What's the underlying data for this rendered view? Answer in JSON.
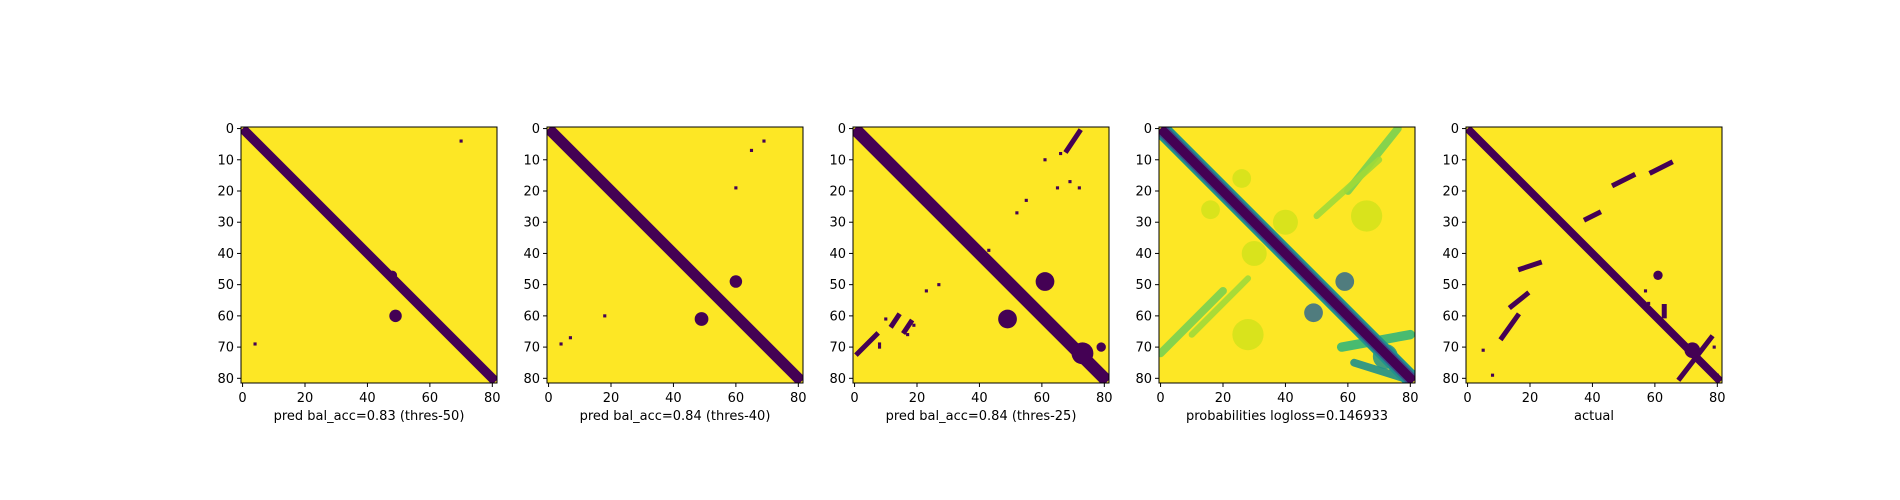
{
  "chart_data": [
    {
      "type": "heatmap",
      "title": "",
      "xlabel": "pred bal_acc=0.83 (thres-50)",
      "ylabel": "",
      "size": 82,
      "xlim": [
        0,
        81
      ],
      "ylim": [
        81,
        0
      ],
      "xticks": [
        0,
        20,
        40,
        60,
        80
      ],
      "yticks": [
        0,
        10,
        20,
        30,
        40,
        50,
        60,
        70,
        80
      ],
      "grid": false,
      "colormap": "viridis",
      "background_color": "#fde725",
      "mark_color": "#440154",
      "values_description": "binary contact map",
      "diagonal_band": {
        "from": 0,
        "to": 81,
        "width": 3
      },
      "blobs": [
        [
          49,
          60,
          2
        ],
        [
          48,
          47,
          1.5
        ]
      ],
      "dots": [
        [
          70,
          4
        ],
        [
          4,
          69
        ]
      ],
      "lines": []
    },
    {
      "type": "heatmap",
      "title": "",
      "xlabel": "pred bal_acc=0.84 (thres-40)",
      "ylabel": "",
      "size": 82,
      "xlim": [
        0,
        81
      ],
      "ylim": [
        81,
        0
      ],
      "xticks": [
        0,
        20,
        40,
        60,
        80
      ],
      "yticks": [
        0,
        10,
        20,
        30,
        40,
        50,
        60,
        70,
        80
      ],
      "grid": false,
      "colormap": "viridis",
      "background_color": "#fde725",
      "mark_color": "#440154",
      "diagonal_band": {
        "from": 0,
        "to": 81,
        "width": 3.5
      },
      "blobs": [
        [
          49,
          61,
          2.2
        ],
        [
          60,
          49,
          2
        ]
      ],
      "dots": [
        [
          69,
          4
        ],
        [
          65,
          7
        ],
        [
          60,
          19
        ],
        [
          7,
          67
        ],
        [
          18,
          60
        ],
        [
          4,
          69
        ]
      ],
      "lines": []
    },
    {
      "type": "heatmap",
      "title": "",
      "xlabel": "pred bal_acc=0.84 (thres-25)",
      "ylabel": "",
      "size": 82,
      "xlim": [
        0,
        81
      ],
      "ylim": [
        81,
        0
      ],
      "xticks": [
        0,
        20,
        40,
        60,
        80
      ],
      "yticks": [
        0,
        10,
        20,
        30,
        40,
        50,
        60,
        70,
        80
      ],
      "grid": false,
      "colormap": "viridis",
      "background_color": "#fde725",
      "mark_color": "#440154",
      "diagonal_band": {
        "from": 0,
        "to": 81,
        "width": 4
      },
      "blobs": [
        [
          49,
          61,
          3
        ],
        [
          61,
          49,
          3
        ],
        [
          73,
          72,
          3.5
        ],
        [
          79,
          70,
          1.5
        ]
      ],
      "dots": [
        [
          65,
          19
        ],
        [
          69,
          17
        ],
        [
          72,
          19
        ],
        [
          55,
          23
        ],
        [
          52,
          27
        ],
        [
          38,
          39
        ],
        [
          43,
          39
        ],
        [
          61,
          10
        ],
        [
          66,
          8
        ],
        [
          8,
          69
        ],
        [
          19,
          63
        ],
        [
          17,
          66
        ],
        [
          23,
          52
        ],
        [
          27,
          50
        ],
        [
          39,
          39
        ],
        [
          10,
          61
        ],
        [
          8,
          70
        ]
      ],
      "lines": [
        [
          [
            72,
            1
          ],
          [
            68,
            7
          ]
        ],
        [
          [
            1,
            72
          ],
          [
            7,
            66
          ]
        ],
        [
          [
            12,
            63
          ],
          [
            14,
            60
          ]
        ],
        [
          [
            16,
            65
          ],
          [
            18,
            62
          ]
        ]
      ]
    },
    {
      "type": "heatmap",
      "title": "",
      "xlabel": "probabilities logloss=0.146933",
      "ylabel": "",
      "size": 82,
      "xlim": [
        0,
        81
      ],
      "ylim": [
        81,
        0
      ],
      "xticks": [
        0,
        20,
        40,
        60,
        80
      ],
      "yticks": [
        0,
        10,
        20,
        30,
        40,
        50,
        60,
        70,
        80
      ],
      "grid": false,
      "colormap": "viridis",
      "background_color": "#fde725",
      "values_description": "continuous probability map",
      "diagonal_band": {
        "from": 0,
        "to": 81,
        "width": 3
      },
      "soft_bands": [
        {
          "from": [
            60,
            20
          ],
          "to": [
            76,
            0
          ],
          "width": 2.5,
          "color": "#7ad151"
        },
        {
          "from": [
            50,
            28
          ],
          "to": [
            70,
            10
          ],
          "width": 2,
          "color": "#a0da39"
        },
        {
          "from": [
            0,
            72
          ],
          "to": [
            20,
            52
          ],
          "width": 2.5,
          "color": "#7ad151"
        },
        {
          "from": [
            10,
            66
          ],
          "to": [
            28,
            48
          ],
          "width": 2,
          "color": "#a0da39"
        },
        {
          "from": [
            58,
            70
          ],
          "to": [
            80,
            66
          ],
          "width": 3,
          "color": "#35b779"
        },
        {
          "from": [
            62,
            75
          ],
          "to": [
            78,
            80
          ],
          "width": 2.5,
          "color": "#21918c"
        }
      ],
      "soft_blobs": [
        [
          49,
          59,
          3,
          "#31688e"
        ],
        [
          59,
          49,
          3,
          "#31688e"
        ],
        [
          72,
          73,
          4,
          "#21918c"
        ],
        [
          66,
          28,
          5,
          "#d2e21b"
        ],
        [
          28,
          66,
          5,
          "#d2e21b"
        ],
        [
          40,
          30,
          4,
          "#d2e21b"
        ],
        [
          30,
          40,
          4,
          "#d2e21b"
        ],
        [
          16,
          26,
          3,
          "#d2e21b"
        ],
        [
          26,
          16,
          3,
          "#d2e21b"
        ]
      ]
    },
    {
      "type": "heatmap",
      "title": "",
      "xlabel": "actual",
      "ylabel": "",
      "size": 82,
      "xlim": [
        0,
        81
      ],
      "ylim": [
        81,
        0
      ],
      "xticks": [
        0,
        20,
        40,
        60,
        80
      ],
      "yticks": [
        0,
        10,
        20,
        30,
        40,
        50,
        60,
        70,
        80
      ],
      "grid": false,
      "colormap": "viridis",
      "background_color": "#fde725",
      "mark_color": "#440154",
      "diagonal_band": {
        "from": 0,
        "to": 81,
        "width": 2.5
      },
      "blobs": [
        [
          61,
          47,
          1.5
        ],
        [
          72,
          71,
          2.5
        ]
      ],
      "dots": [
        [
          57,
          52
        ],
        [
          58,
          56
        ],
        [
          79,
          70
        ],
        [
          80,
          79
        ],
        [
          8,
          79
        ],
        [
          5,
          71
        ]
      ],
      "lines": [
        [
          [
            14,
            57
          ],
          [
            19,
            53
          ]
        ],
        [
          [
            17,
            45
          ],
          [
            23,
            43
          ]
        ],
        [
          [
            11,
            67
          ],
          [
            16,
            60
          ]
        ],
        [
          [
            47,
            18
          ],
          [
            53,
            15
          ]
        ],
        [
          [
            38,
            29
          ],
          [
            42,
            27
          ]
        ],
        [
          [
            59,
            14
          ],
          [
            65,
            11
          ]
        ],
        [
          [
            68,
            80
          ],
          [
            78,
            67
          ]
        ],
        [
          [
            63,
            57
          ],
          [
            63,
            60
          ]
        ]
      ]
    }
  ]
}
